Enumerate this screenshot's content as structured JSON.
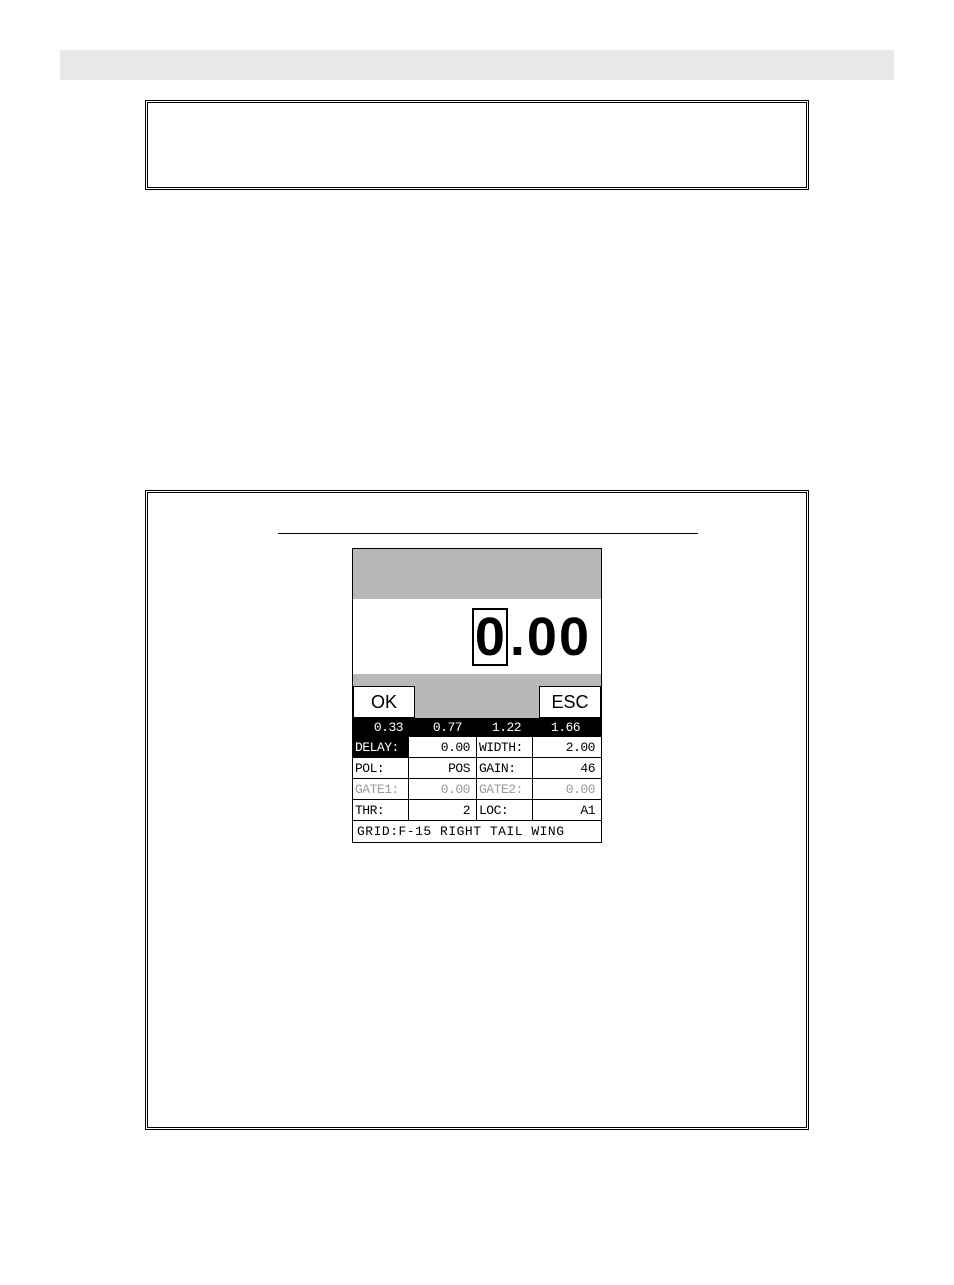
{
  "display": {
    "selected_digit": "0",
    "decimal": ".",
    "digit2": "0",
    "digit3": "0"
  },
  "buttons": {
    "ok": "OK",
    "esc": "ESC"
  },
  "scale": {
    "v1": "0.33",
    "v2": "0.77",
    "v3": "1.22",
    "v4": "1.66"
  },
  "rows": {
    "delay_label": "DELAY:",
    "delay_value": "0.00",
    "width_label": "WIDTH:",
    "width_value": "2.00",
    "pol_label": "POL:",
    "pol_value": "POS",
    "gain_label": "GAIN:",
    "gain_value": "46",
    "gate1_label": "GATE1:",
    "gate1_value": "0.00",
    "gate2_label": "GATE2:",
    "gate2_value": "0.00",
    "thr_label": "THR:",
    "thr_value": "2",
    "loc_label": "LOC:",
    "loc_value": "A1"
  },
  "footer": {
    "text": "GRID:F-15 RIGHT TAIL WING"
  },
  "colors": {
    "grey": "#b8b8b8",
    "header_grey": "#e8e8e8",
    "black": "#000000",
    "white": "#ffffff",
    "dim": "#999999"
  }
}
